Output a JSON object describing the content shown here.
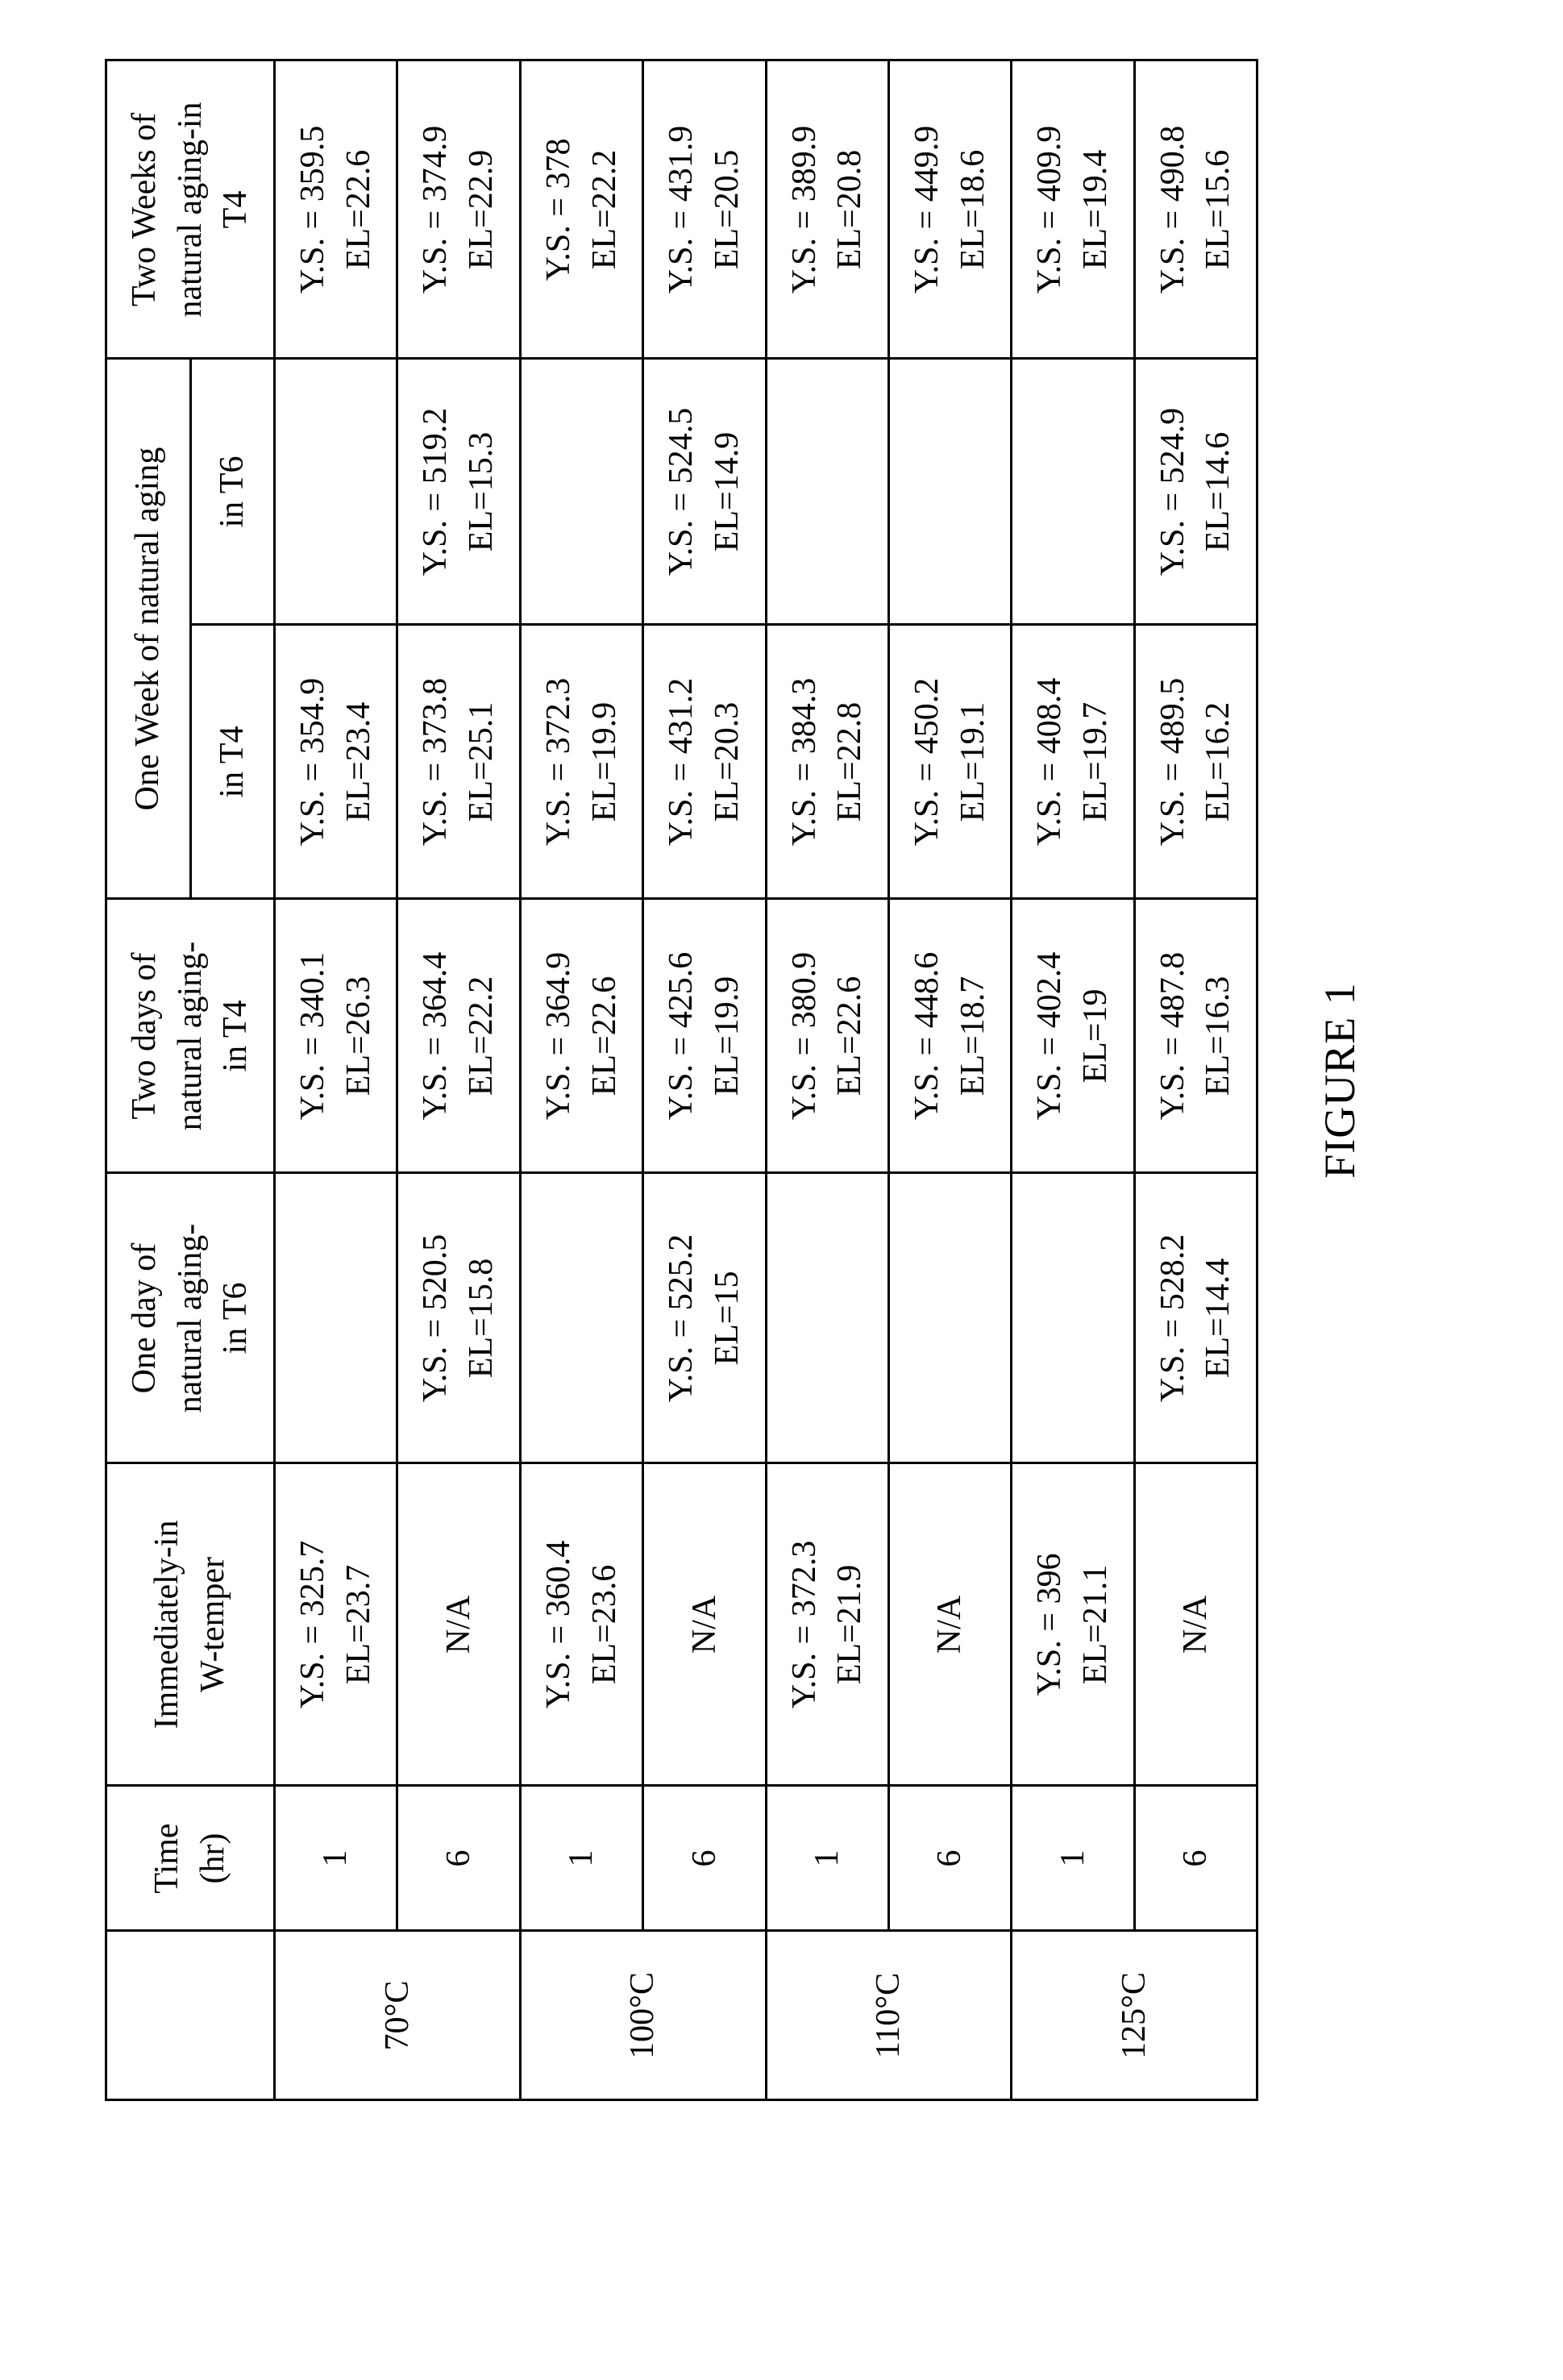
{
  "caption": "FIGURE 1",
  "table": {
    "header": {
      "blank": "",
      "time": {
        "l1": "Time",
        "l2": "(hr)"
      },
      "immediate": {
        "l1": "Immediately-in",
        "l2": "W-temper"
      },
      "one_day_t6": {
        "l1": "One day of",
        "l2": "natural aging-",
        "l3": "in T6"
      },
      "two_days_t4": {
        "l1": "Two days of",
        "l2": "natural aging-",
        "l3": "in T4"
      },
      "one_week_group": "One Week of natural aging",
      "one_week_t4": "in T4",
      "one_week_t6": "in T6",
      "two_weeks_t4": {
        "l1": "Two Weeks of",
        "l2": "natural aging-in",
        "l3": "T4"
      }
    },
    "temps": [
      "70°C",
      "100°C",
      "110°C",
      "125°C"
    ],
    "rows": [
      {
        "time": "1",
        "immediate": {
          "ys": "Y.S. = 325.7",
          "el": "EL=23.7"
        },
        "one_day_t6": null,
        "two_days_t4": {
          "ys": "Y.S. = 340.1",
          "el": "EL=26.3"
        },
        "one_week_t4": {
          "ys": "Y.S. = 354.9",
          "el": "EL=23.4"
        },
        "one_week_t6": null,
        "two_weeks_t4": {
          "ys": "Y.S. = 359.5",
          "el": "EL=22.6"
        }
      },
      {
        "time": "6",
        "immediate": {
          "na": "N/A"
        },
        "one_day_t6": {
          "ys": "Y.S. = 520.5",
          "el": "EL=15.8"
        },
        "two_days_t4": {
          "ys": "Y.S. = 364.4",
          "el": "EL=22.2"
        },
        "one_week_t4": {
          "ys": "Y.S. = 373.8",
          "el": "EL=25.1"
        },
        "one_week_t6": {
          "ys": "Y.S. = 519.2",
          "el": "EL=15.3"
        },
        "two_weeks_t4": {
          "ys": "Y.S. = 374.9",
          "el": "EL=22.9"
        }
      },
      {
        "time": "1",
        "immediate": {
          "ys": "Y.S. = 360.4",
          "el": "EL=23.6"
        },
        "one_day_t6": null,
        "two_days_t4": {
          "ys": "Y.S. = 364.9",
          "el": "EL=22.6"
        },
        "one_week_t4": {
          "ys": "Y.S. = 372.3",
          "el": "EL=19.9"
        },
        "one_week_t6": null,
        "two_weeks_t4": {
          "ys": "Y.S. = 378",
          "el": "EL=22.2"
        }
      },
      {
        "time": "6",
        "immediate": {
          "na": "N/A"
        },
        "one_day_t6": {
          "ys": "Y.S. = 525.2",
          "el": "EL=15"
        },
        "two_days_t4": {
          "ys": "Y.S. = 425.6",
          "el": "EL=19.9"
        },
        "one_week_t4": {
          "ys": "Y.S. = 431.2",
          "el": "EL=20.3"
        },
        "one_week_t6": {
          "ys": "Y.S. = 524.5",
          "el": "EL=14.9"
        },
        "two_weeks_t4": {
          "ys": "Y.S. = 431.9",
          "el": "EL=20.5"
        }
      },
      {
        "time": "1",
        "immediate": {
          "ys": "Y.S. = 372.3",
          "el": "EL=21.9"
        },
        "one_day_t6": null,
        "two_days_t4": {
          "ys": "Y.S. = 380.9",
          "el": "EL=22.6"
        },
        "one_week_t4": {
          "ys": "Y.S. = 384.3",
          "el": "EL=22.8"
        },
        "one_week_t6": null,
        "two_weeks_t4": {
          "ys": "Y.S. = 389.9",
          "el": "EL=20.8"
        }
      },
      {
        "time": "6",
        "immediate": {
          "na": "N/A"
        },
        "one_day_t6": null,
        "two_days_t4": {
          "ys": "Y.S. = 448.6",
          "el": "EL=18.7"
        },
        "one_week_t4": {
          "ys": "Y.S. = 450.2",
          "el": "EL=19.1"
        },
        "one_week_t6": null,
        "two_weeks_t4": {
          "ys": "Y.S. = 449.9",
          "el": "EL=18.6"
        }
      },
      {
        "time": "1",
        "immediate": {
          "ys": "Y.S. = 396",
          "el": "EL=21.1"
        },
        "one_day_t6": null,
        "two_days_t4": {
          "ys": "Y.S. = 402.4",
          "el": "EL=19"
        },
        "one_week_t4": {
          "ys": "Y.S. = 408.4",
          "el": "EL=19.7"
        },
        "one_week_t6": null,
        "two_weeks_t4": {
          "ys": "Y.S. = 409.9",
          "el": "EL=19.4"
        }
      },
      {
        "time": "6",
        "immediate": {
          "na": "N/A"
        },
        "one_day_t6": {
          "ys": "Y.S. = 528.2",
          "el": "EL=14.4"
        },
        "two_days_t4": {
          "ys": "Y.S. = 487.8",
          "el": "EL=16.3"
        },
        "one_week_t4": {
          "ys": "Y.S. = 489.5",
          "el": "EL=16.2"
        },
        "one_week_t6": {
          "ys": "Y.S. = 524.9",
          "el": "EL=14.6"
        },
        "two_weeks_t4": {
          "ys": "Y.S. = 490.8",
          "el": "EL=15.6"
        }
      }
    ]
  }
}
